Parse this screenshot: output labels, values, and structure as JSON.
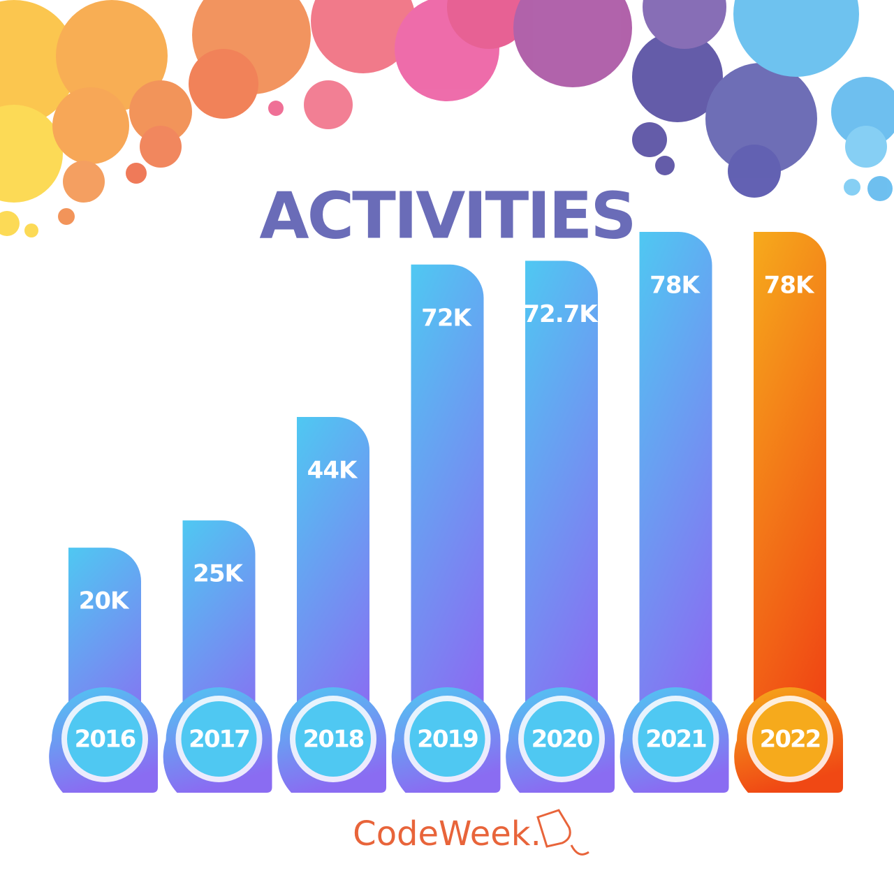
{
  "chart_data": {
    "type": "bar",
    "title": "ACTIVITIES",
    "categories": [
      "2016",
      "2017",
      "2018",
      "2019",
      "2020",
      "2021",
      "2022"
    ],
    "values": [
      20000,
      25000,
      44000,
      72000,
      72700,
      78000,
      78000
    ],
    "value_labels": [
      "20K",
      "25K",
      "44K",
      "72K",
      "72.7K",
      "78K",
      "78K"
    ],
    "colors": [
      [
        "#4fc8f2",
        "#8a6cf2"
      ],
      [
        "#4fc8f2",
        "#8a6cf2"
      ],
      [
        "#4fc8f2",
        "#8a6cf2"
      ],
      [
        "#4fc8f2",
        "#8a6cf2"
      ],
      [
        "#4fc8f2",
        "#8a6cf2"
      ],
      [
        "#4fc8f2",
        "#8a6cf2"
      ],
      [
        "#f6aa1c",
        "#f04814"
      ]
    ],
    "footer": "CodeWeek."
  }
}
